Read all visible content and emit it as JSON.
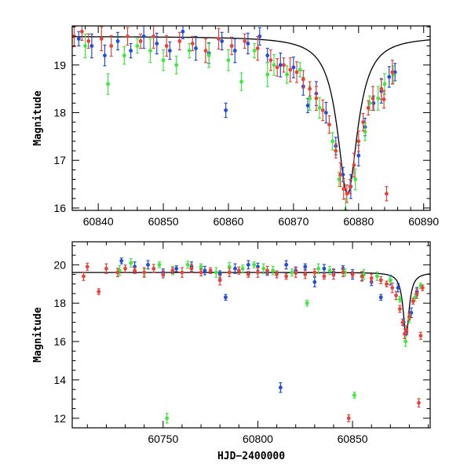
{
  "chart_data": [
    {
      "type": "scatter",
      "title": "",
      "xlabel": "",
      "ylabel": "Magnitude",
      "xlim": [
        60836,
        60891
      ],
      "ylim": [
        19.82,
        15.95
      ],
      "y_inverted": true,
      "xticks_major": [
        60840,
        60850,
        60860,
        60870,
        60880,
        60890
      ],
      "yticks_major": [
        16,
        17,
        18,
        19
      ],
      "grid": false,
      "model": "black curve: 19.6 - 3.3 / (1 + ((x - 60878.3) / 1.9)^2)",
      "series": [
        {
          "color": "#1f4fd8",
          "points": [
            [
              60837,
              19.55
            ],
            [
              60839,
              19.4
            ],
            [
              60841,
              19.2
            ],
            [
              60843,
              19.5
            ],
            [
              60845,
              19.3
            ],
            [
              60847,
              19.6
            ],
            [
              60849,
              19.45
            ],
            [
              60851,
              19.3
            ],
            [
              60853,
              19.7
            ],
            [
              60855,
              19.35
            ],
            [
              60857,
              19.25
            ],
            [
              60859,
              19.5
            ],
            [
              60859.6,
              18.05
            ],
            [
              60861,
              19.3
            ],
            [
              60863,
              19.45
            ],
            [
              60864.8,
              19.6
            ],
            [
              60866,
              19.2
            ],
            [
              60868,
              19.0
            ],
            [
              60870,
              18.95
            ],
            [
              60871.5,
              18.55
            ],
            [
              60872.2,
              18.15
            ],
            [
              60873.5,
              18.4
            ],
            [
              60875,
              18.0
            ],
            [
              60876.5,
              17.3
            ],
            [
              60877.6,
              16.7
            ],
            [
              60878.8,
              16.45
            ],
            [
              60880,
              17.1
            ],
            [
              60881,
              17.7
            ],
            [
              60882.3,
              18.2
            ],
            [
              60883.5,
              18.45
            ],
            [
              60884.7,
              18.75
            ],
            [
              60885.6,
              18.85
            ]
          ]
        },
        {
          "color": "#3ee83e",
          "points": [
            [
              60838,
              19.4
            ],
            [
              60841.5,
              18.6
            ],
            [
              60844,
              19.2
            ],
            [
              60846,
              19.4
            ],
            [
              60848,
              19.3
            ],
            [
              60850,
              19.1
            ],
            [
              60852,
              19.0
            ],
            [
              60854,
              19.3
            ],
            [
              60857,
              19.2
            ],
            [
              60860,
              19.1
            ],
            [
              60862,
              18.65
            ],
            [
              60864,
              19.3
            ],
            [
              60866,
              18.8
            ],
            [
              60867,
              19.0
            ],
            [
              60869,
              18.8
            ],
            [
              60871,
              18.9
            ],
            [
              60872.5,
              18.3
            ],
            [
              60874,
              18.1
            ],
            [
              60876,
              17.4
            ],
            [
              60877,
              16.6
            ],
            [
              60878,
              15.95
            ],
            [
              60879.5,
              16.6
            ],
            [
              60881,
              17.6
            ],
            [
              60881.7,
              18.2
            ],
            [
              60883,
              18.3
            ],
            [
              60884,
              18.6
            ],
            [
              60885.3,
              18.8
            ]
          ]
        },
        {
          "color": "#e84338",
          "points": [
            [
              60836.3,
              19.6
            ],
            [
              60837.5,
              19.7
            ],
            [
              60838.5,
              19.5
            ],
            [
              60840.5,
              19.55
            ],
            [
              60842,
              19.4
            ],
            [
              60844.5,
              19.6
            ],
            [
              60846.5,
              19.5
            ],
            [
              60848.5,
              19.6
            ],
            [
              60850.5,
              19.4
            ],
            [
              60852.5,
              19.5
            ],
            [
              60854.5,
              19.45
            ],
            [
              60856.5,
              19.3
            ],
            [
              60858.5,
              19.55
            ],
            [
              60860.5,
              19.4
            ],
            [
              60862.5,
              19.5
            ],
            [
              60864.5,
              19.35
            ],
            [
              60866.5,
              19.1
            ],
            [
              60867.5,
              18.95
            ],
            [
              60868.5,
              19.0
            ],
            [
              60869.5,
              18.9
            ],
            [
              60870.5,
              18.85
            ],
            [
              60871.5,
              18.7
            ],
            [
              60872.5,
              18.5
            ],
            [
              60873.5,
              18.3
            ],
            [
              60874.5,
              18.05
            ],
            [
              60875.5,
              17.75
            ],
            [
              60876.5,
              17.2
            ],
            [
              60877.2,
              16.7
            ],
            [
              60877.7,
              16.4
            ],
            [
              60878.2,
              16.3
            ],
            [
              60878.7,
              16.45
            ],
            [
              60879.3,
              16.9
            ],
            [
              60880,
              17.4
            ],
            [
              60880.7,
              17.8
            ],
            [
              60881.5,
              18.1
            ],
            [
              60882.2,
              18.3
            ],
            [
              60883.5,
              18.5
            ],
            [
              60883.9,
              18.28
            ],
            [
              60884.3,
              16.3
            ],
            [
              60885.2,
              18.85
            ]
          ]
        }
      ]
    },
    {
      "type": "scatter",
      "title": "",
      "xlabel": "HJD−2400000",
      "ylabel": "Magnitude",
      "xlim": [
        60702,
        60891
      ],
      "ylim": [
        21.2,
        11.5
      ],
      "y_inverted": true,
      "xticks_major": [
        60750,
        60800,
        60850
      ],
      "yticks_major": [
        12,
        14,
        16,
        18,
        20
      ],
      "grid": false,
      "model": "black curve: 19.6 - 3.3 / (1 + ((x - 60878.3) / 1.9)^2)",
      "series": [
        {
          "color": "#1f4fd8",
          "points": [
            [
              60728,
              20.2
            ],
            [
              60735,
              19.9
            ],
            [
              60742,
              20.0
            ],
            [
              60750,
              19.6
            ],
            [
              60757,
              19.8
            ],
            [
              60765,
              19.9
            ],
            [
              60772,
              19.7
            ],
            [
              60780,
              19.5
            ],
            [
              60783,
              18.3
            ],
            [
              60788,
              19.8
            ],
            [
              60795,
              20.0
            ],
            [
              60800,
              19.9
            ],
            [
              60805,
              19.6
            ],
            [
              60812,
              13.6
            ],
            [
              60815,
              20.0
            ],
            [
              60820,
              19.7
            ],
            [
              60825,
              19.9
            ],
            [
              60830,
              19.1
            ],
            [
              60835,
              19.8
            ],
            [
              60840,
              19.6
            ],
            [
              60845,
              19.8
            ],
            [
              60850,
              19.5
            ],
            [
              60855,
              19.4
            ],
            [
              60860,
              19.1
            ],
            [
              60865,
              18.3
            ],
            [
              60870,
              19.2
            ],
            [
              60874,
              18.8
            ],
            [
              60877,
              17.0
            ],
            [
              60878.5,
              16.5
            ],
            [
              60881,
              17.5
            ],
            [
              60884,
              18.6
            ]
          ]
        },
        {
          "color": "#3ee83e",
          "points": [
            [
              60727,
              19.7
            ],
            [
              60733,
              20.1
            ],
            [
              60740,
              19.6
            ],
            [
              60748,
              20.0
            ],
            [
              60752,
              12.0
            ],
            [
              60755,
              19.7
            ],
            [
              60763,
              20.0
            ],
            [
              60770,
              19.9
            ],
            [
              60778,
              19.6
            ],
            [
              60785,
              19.9
            ],
            [
              60792,
              19.8
            ],
            [
              60798,
              20.0
            ],
            [
              60803,
              19.8
            ],
            [
              60808,
              19.7
            ],
            [
              60818,
              19.6
            ],
            [
              60826,
              18.0
            ],
            [
              60832,
              19.8
            ],
            [
              60838,
              19.7
            ],
            [
              60846,
              19.6
            ],
            [
              60851,
              13.2
            ],
            [
              60856,
              19.5
            ],
            [
              60863,
              19.4
            ],
            [
              60870,
              19.2
            ],
            [
              60875,
              18.2
            ],
            [
              60878,
              16.0
            ],
            [
              60880,
              17.2
            ],
            [
              60883,
              18.3
            ],
            [
              60886,
              18.9
            ]
          ]
        },
        {
          "color": "#e84338",
          "points": [
            [
              60708,
              19.4
            ],
            [
              60710,
              19.9
            ],
            [
              60716,
              18.6
            ],
            [
              60720,
              19.8
            ],
            [
              60726,
              19.6
            ],
            [
              60730,
              19.8
            ],
            [
              60735,
              19.7
            ],
            [
              60740,
              19.6
            ],
            [
              60745,
              19.8
            ],
            [
              60750,
              19.5
            ],
            [
              60755,
              19.7
            ],
            [
              60760,
              19.6
            ],
            [
              60765,
              19.8
            ],
            [
              60770,
              19.6
            ],
            [
              60775,
              19.7
            ],
            [
              60780,
              19.2
            ],
            [
              60785,
              19.6
            ],
            [
              60790,
              19.7
            ],
            [
              60795,
              19.5
            ],
            [
              60800,
              19.6
            ],
            [
              60805,
              19.7
            ],
            [
              60810,
              19.5
            ],
            [
              60815,
              19.4
            ],
            [
              60820,
              19.6
            ],
            [
              60825,
              19.5
            ],
            [
              60830,
              19.6
            ],
            [
              60835,
              19.4
            ],
            [
              60840,
              19.5
            ],
            [
              60845,
              19.6
            ],
            [
              60848,
              12.0
            ],
            [
              60850,
              19.5
            ],
            [
              60855,
              19.4
            ],
            [
              60860,
              19.3
            ],
            [
              60865,
              19.2
            ],
            [
              60868,
              19.0
            ],
            [
              60871,
              18.8
            ],
            [
              60873,
              18.4
            ],
            [
              60875,
              17.7
            ],
            [
              60876.5,
              17.0
            ],
            [
              60877.5,
              16.4
            ],
            [
              60878.5,
              16.6
            ],
            [
              60880,
              17.3
            ],
            [
              60882,
              18.1
            ],
            [
              60884,
              18.5
            ],
            [
              60885,
              12.8
            ],
            [
              60886,
              16.3
            ],
            [
              60887,
              18.8
            ]
          ]
        }
      ]
    }
  ]
}
